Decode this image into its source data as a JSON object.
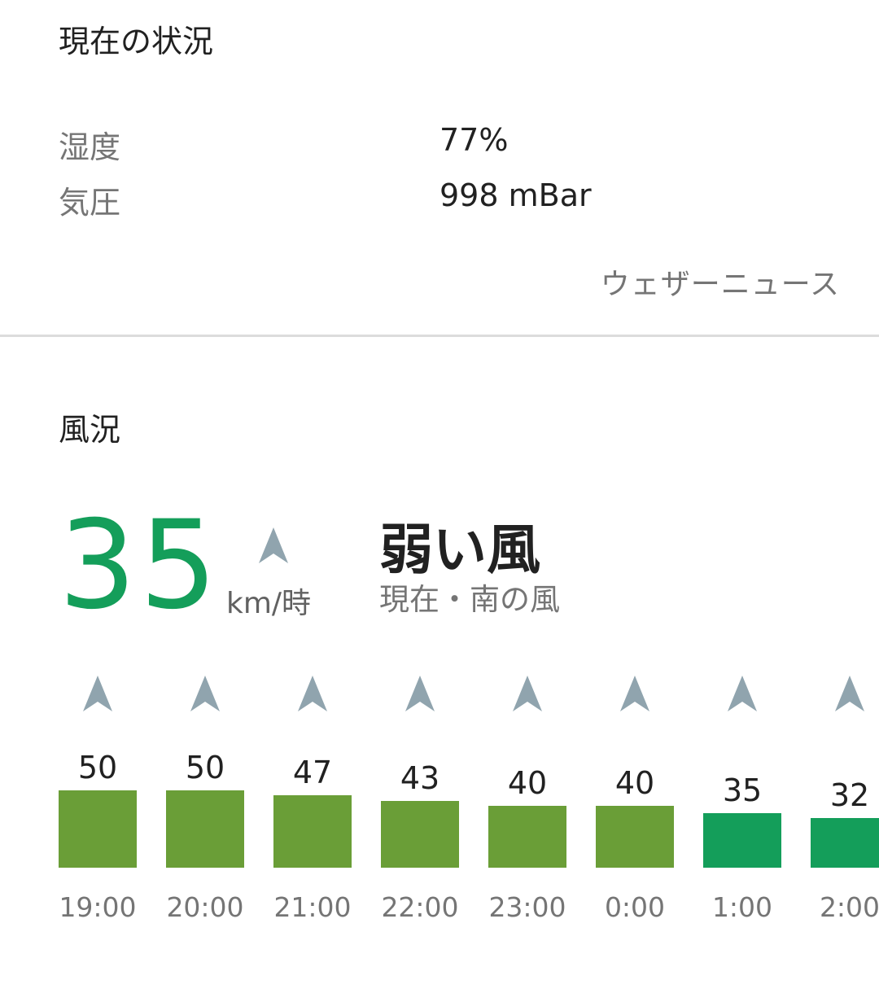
{
  "current": {
    "title": "現在の状況",
    "rows": [
      {
        "label": "湿度",
        "value": "77%"
      },
      {
        "label": "気圧",
        "value": "998 mBar"
      }
    ],
    "source": "ウェザーニュース"
  },
  "wind": {
    "title": "風況",
    "speed": "35",
    "unit": "km/時",
    "description": "弱い風",
    "sub": "現在・南の風",
    "icon": "north-arrow-icon",
    "colors": {
      "strong": "#6a9e37",
      "moderate": "#149e5a",
      "arrow": "#90a4ae"
    },
    "hourly": [
      {
        "time": "19:00",
        "speed": "50",
        "level": "strong"
      },
      {
        "time": "20:00",
        "speed": "50",
        "level": "strong"
      },
      {
        "time": "21:00",
        "speed": "47",
        "level": "strong"
      },
      {
        "time": "22:00",
        "speed": "43",
        "level": "strong"
      },
      {
        "time": "23:00",
        "speed": "40",
        "level": "strong"
      },
      {
        "time": "0:00",
        "speed": "40",
        "level": "strong"
      },
      {
        "time": "1:00",
        "speed": "35",
        "level": "moderate"
      },
      {
        "time": "2:00",
        "speed": "32",
        "level": "moderate"
      }
    ]
  }
}
